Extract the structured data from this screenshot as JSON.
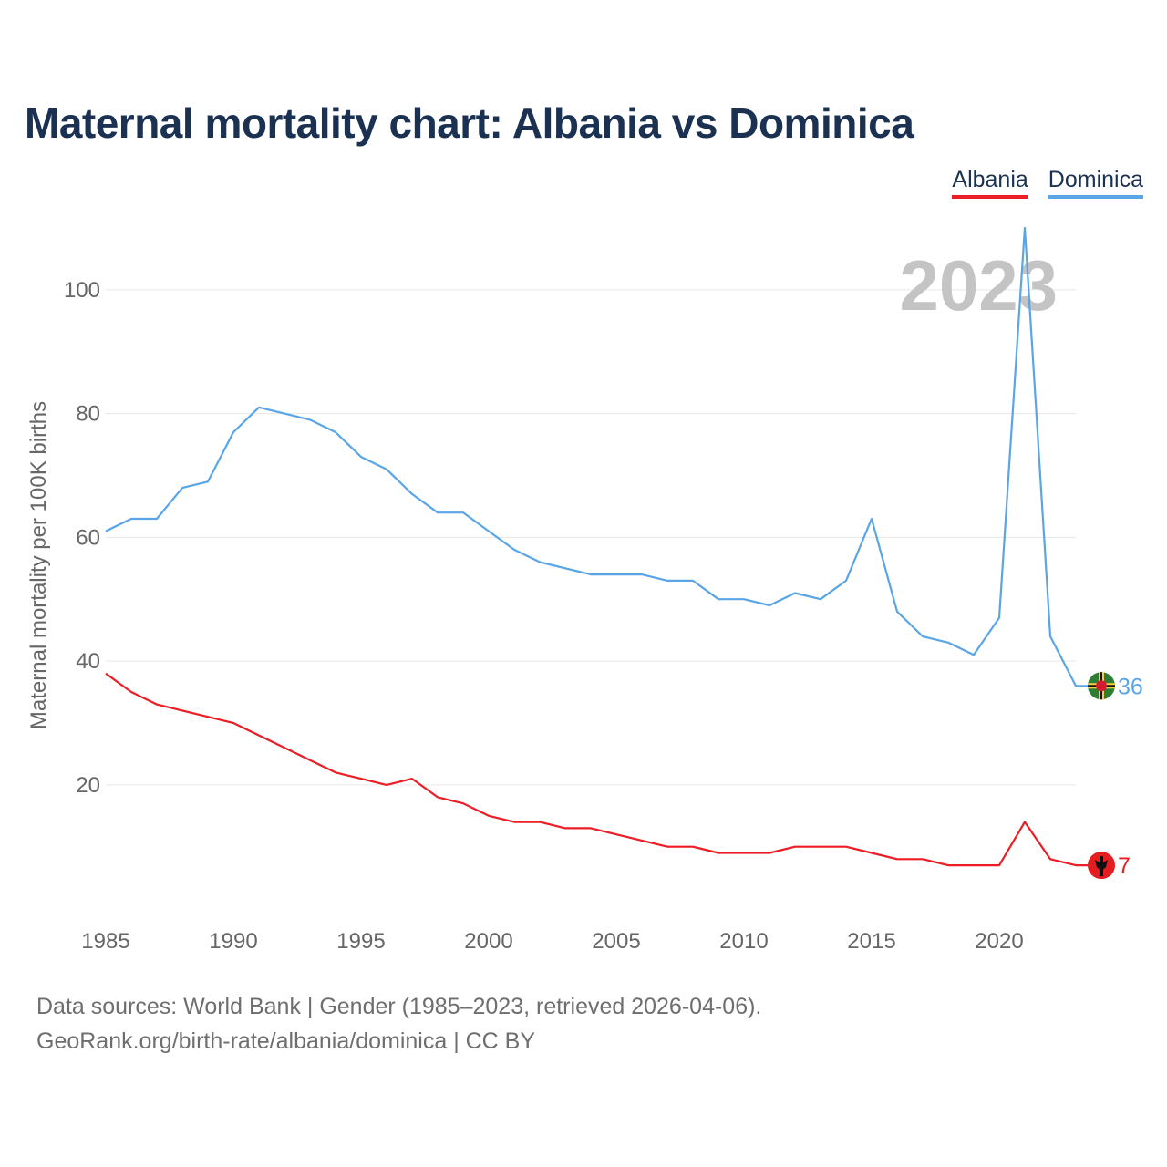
{
  "page": {
    "title": "Maternal mortality chart: Albania vs Dominica",
    "source_line1": "Data sources: World Bank | Gender (1985–2023, retrieved 2026-04-06).",
    "source_line2": "GeoRank.org/birth-rate/albania/dominica | CC BY"
  },
  "legend": [
    {
      "label": "Albania",
      "color": "#ee1c25"
    },
    {
      "label": "Dominica",
      "color": "#5aa5e6"
    }
  ],
  "chart_data": {
    "type": "line",
    "title": "Maternal mortality chart: Albania vs Dominica",
    "xlabel": "",
    "ylabel": "Maternal mortality per 100K births",
    "year_label": "2023",
    "x": [
      1985,
      1986,
      1987,
      1988,
      1989,
      1990,
      1991,
      1992,
      1993,
      1994,
      1995,
      1996,
      1997,
      1998,
      1999,
      2000,
      2001,
      2002,
      2003,
      2004,
      2005,
      2006,
      2007,
      2008,
      2009,
      2010,
      2011,
      2012,
      2013,
      2014,
      2015,
      2016,
      2017,
      2018,
      2019,
      2020,
      2021,
      2022,
      2023
    ],
    "xlim": [
      1985,
      2023
    ],
    "ylim": [
      -0.5,
      110
    ],
    "xticks": [
      1985,
      1990,
      1995,
      2000,
      2005,
      2010,
      2015,
      2020
    ],
    "yticks": [
      20,
      40,
      60,
      80,
      100
    ],
    "grid": true,
    "series": [
      {
        "name": "Albania",
        "color": "#ee1c25",
        "end_label": "7",
        "values": [
          38,
          35,
          33,
          32,
          31,
          30,
          28,
          26,
          24,
          22,
          21,
          20,
          21,
          18,
          17,
          15,
          14,
          14,
          13,
          13,
          12,
          11,
          10,
          10,
          9,
          9,
          9,
          10,
          10,
          10,
          9,
          8,
          8,
          7,
          7,
          7,
          14,
          8,
          7
        ]
      },
      {
        "name": "Dominica",
        "color": "#5aa5e6",
        "end_label": "36",
        "values": [
          61,
          63,
          63,
          68,
          69,
          77,
          81,
          80,
          79,
          77,
          73,
          71,
          67,
          64,
          64,
          61,
          58,
          56,
          55,
          54,
          54,
          54,
          53,
          53,
          50,
          50,
          49,
          51,
          50,
          53,
          63,
          48,
          44,
          43,
          41,
          47,
          110,
          44,
          36
        ]
      }
    ]
  }
}
